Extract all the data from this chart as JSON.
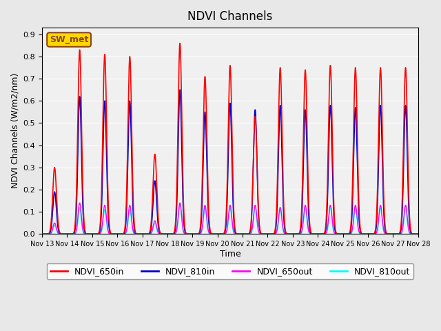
{
  "title": "NDVI Channels",
  "xlabel": "Time",
  "ylabel": "NDVI Channels (W/m2/nm)",
  "ylim": [
    0.0,
    0.93
  ],
  "yticks": [
    0.0,
    0.1,
    0.2,
    0.3,
    0.4,
    0.5,
    0.6,
    0.7,
    0.8,
    0.9
  ],
  "background_color": "#e8e8e8",
  "plot_bg_color": "#f0f0f0",
  "annotation_text": "SW_met",
  "annotation_color": "#8B4513",
  "annotation_bg": "#FFD700",
  "lines": {
    "NDVI_650in": {
      "color": "#ff0000",
      "lw": 1.2
    },
    "NDVI_810in": {
      "color": "#0000cc",
      "lw": 1.2
    },
    "NDVI_650out": {
      "color": "#ff00ff",
      "lw": 1.0
    },
    "NDVI_810out": {
      "color": "#00ffff",
      "lw": 1.0
    }
  },
  "x_tick_labels": [
    "Nov 13",
    "Nov 14",
    "Nov 15",
    "Nov 16",
    "Nov 17",
    "Nov 18",
    "Nov 19",
    "Nov 20",
    "Nov 21",
    "Nov 22",
    "Nov 23",
    "Nov 24",
    "Nov 25",
    "Nov 26",
    "Nov 27",
    "Nov 28"
  ],
  "num_days": 15,
  "daily_peaks_650in": [
    0.3,
    0.83,
    0.81,
    0.8,
    0.36,
    0.86,
    0.71,
    0.76,
    0.53,
    0.75,
    0.74,
    0.76,
    0.75,
    0.75,
    0.75
  ],
  "daily_peaks_810in": [
    0.19,
    0.62,
    0.6,
    0.6,
    0.24,
    0.65,
    0.55,
    0.59,
    0.56,
    0.58,
    0.56,
    0.58,
    0.57,
    0.58,
    0.58
  ],
  "daily_peaks_650out": [
    0.05,
    0.14,
    0.13,
    0.13,
    0.06,
    0.14,
    0.13,
    0.13,
    0.13,
    0.12,
    0.13,
    0.13,
    0.13,
    0.13,
    0.13
  ],
  "daily_peaks_810out": [
    0.04,
    0.12,
    0.11,
    0.11,
    0.05,
    0.14,
    0.12,
    0.12,
    0.12,
    0.11,
    0.12,
    0.12,
    0.12,
    0.12,
    0.12
  ]
}
